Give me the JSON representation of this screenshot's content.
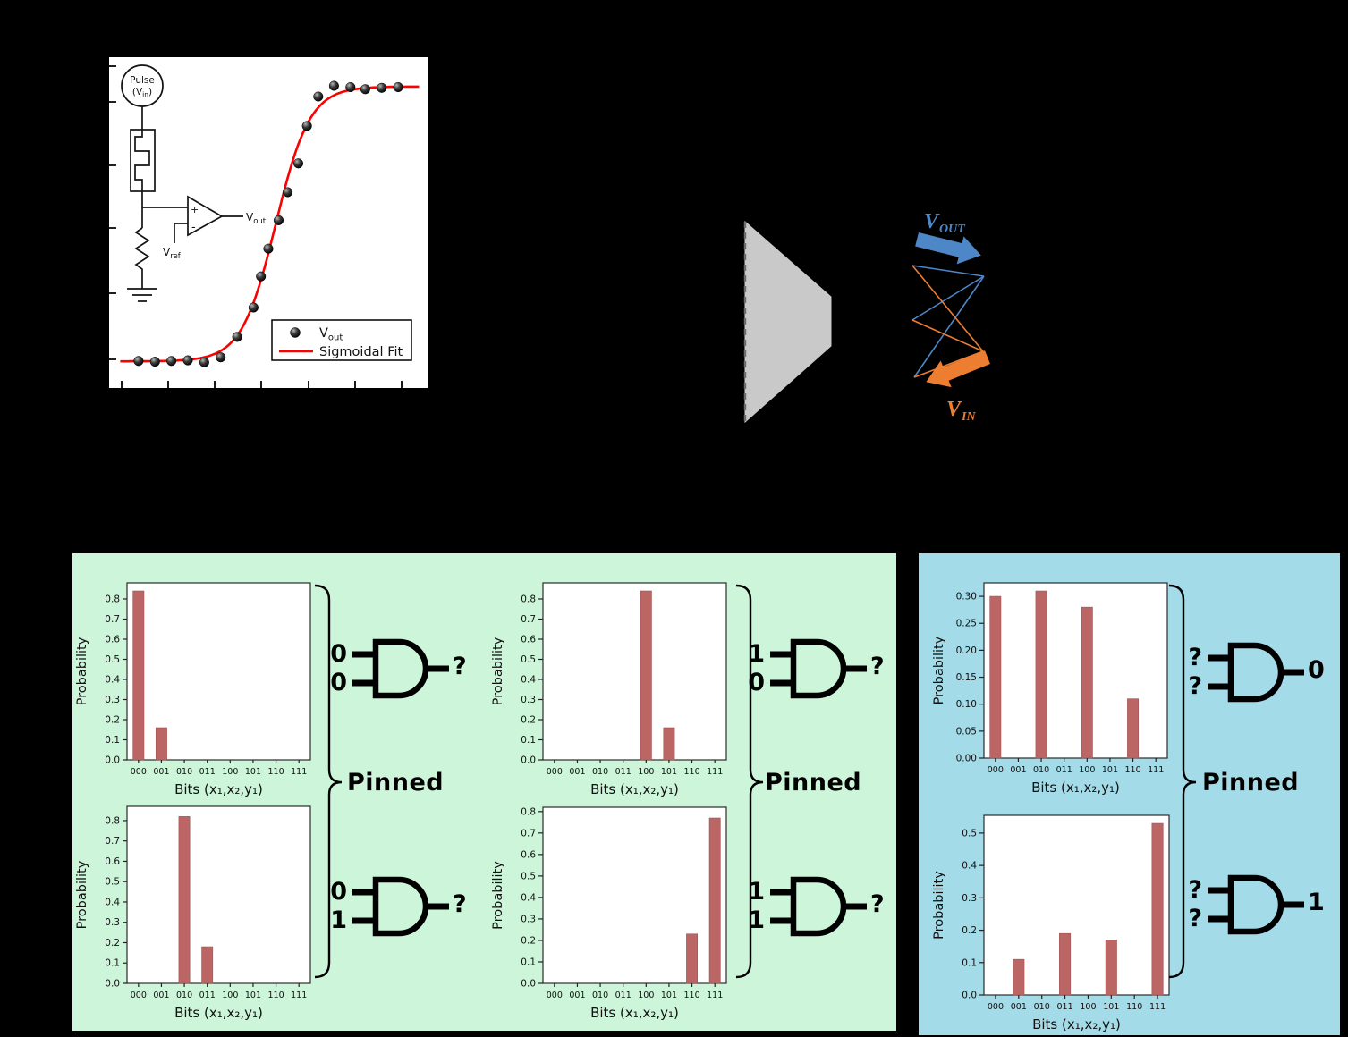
{
  "ui": {
    "colors": {
      "background": "#000000",
      "blue": "#4d87c8",
      "orange": "#ed7d31",
      "bar": "#bc6565",
      "bar_edge": "#a05454",
      "green_bg": "#cdf5da",
      "blue_bg": "#a3dbe8",
      "gray": "#c9c9c9",
      "red": "#ff0000"
    },
    "circuit": {
      "pulse_line1": "Pulse",
      "pulse_line2_open": "(V",
      "pulse_line2_sub": "in",
      "pulse_line2_close": ")",
      "opamp_plus": "+",
      "opamp_minus": "-",
      "vout_main": "V",
      "vout_sub": "out",
      "vref_main": "V",
      "vref_sub": "ref"
    },
    "legend": {
      "vout_main": "V",
      "vout_sub": "out",
      "fit_label": "Sigmoidal Fit"
    },
    "network": {
      "vout_main": "V",
      "vout_sub": "OUT",
      "vin_main": "V",
      "vin_sub": "IN"
    },
    "pinned": [
      "Pinned",
      "Pinned",
      "Pinned"
    ]
  },
  "groups": [
    {
      "inputs": [
        "0",
        "0"
      ],
      "output": "?"
    },
    {
      "inputs": [
        "0",
        "1"
      ],
      "output": "?"
    },
    {
      "inputs": [
        "1",
        "0"
      ],
      "output": "?"
    },
    {
      "inputs": [
        "1",
        "1"
      ],
      "output": "?"
    },
    {
      "inputs": [
        "?",
        "?"
      ],
      "output": "0"
    },
    {
      "inputs": [
        "?",
        "?"
      ],
      "output": "1"
    }
  ],
  "chart_data": [
    {
      "type": "scatter",
      "title": "",
      "legend": [
        "Vout",
        "Sigmoidal Fit"
      ],
      "legend_position": "lower right",
      "xlim": [
        0,
        1
      ],
      "ylim": [
        0,
        1
      ],
      "series": [
        {
          "name": "Vout",
          "marker": "sphere",
          "points_frac": [
            [
              0.097,
              0.086
            ],
            [
              0.148,
              0.084
            ],
            [
              0.199,
              0.086
            ],
            [
              0.25,
              0.088
            ],
            [
              0.301,
              0.082
            ],
            [
              0.352,
              0.097
            ],
            [
              0.403,
              0.158
            ],
            [
              0.454,
              0.246
            ],
            [
              0.477,
              0.339
            ],
            [
              0.5,
              0.422
            ],
            [
              0.532,
              0.507
            ],
            [
              0.56,
              0.591
            ],
            [
              0.593,
              0.677
            ],
            [
              0.62,
              0.789
            ],
            [
              0.655,
              0.877
            ],
            [
              0.704,
              0.909
            ],
            [
              0.755,
              0.905
            ],
            [
              0.801,
              0.899
            ],
            [
              0.852,
              0.903
            ],
            [
              0.903,
              0.905
            ]
          ]
        },
        {
          "name": "Sigmoidal Fit",
          "fit": {
            "y0": 0.085,
            "amp": 0.822,
            "x0": 0.523,
            "k": 0.053
          }
        }
      ]
    },
    {
      "type": "bar",
      "categories": [
        "000",
        "001",
        "010",
        "011",
        "100",
        "101",
        "110",
        "111"
      ],
      "values": [
        0.84,
        0.16,
        0,
        0,
        0,
        0,
        0,
        0
      ],
      "ylabel": "Probability",
      "xlabel": "Bits (x₁,x₂,y₁)",
      "ylim": [
        0,
        0.88
      ],
      "ytick_step": 0.1,
      "ytick_decimals": 1
    },
    {
      "type": "bar",
      "categories": [
        "000",
        "001",
        "010",
        "011",
        "100",
        "101",
        "110",
        "111"
      ],
      "values": [
        0,
        0,
        0.82,
        0.18,
        0,
        0,
        0,
        0
      ],
      "ylabel": "Probability",
      "xlabel": "Bits (x₁,x₂,y₁)",
      "ylim": [
        0,
        0.87
      ],
      "ytick_step": 0.1,
      "ytick_decimals": 1
    },
    {
      "type": "bar",
      "categories": [
        "000",
        "001",
        "010",
        "011",
        "100",
        "101",
        "110",
        "111"
      ],
      "values": [
        0,
        0,
        0,
        0,
        0.84,
        0.16,
        0,
        0
      ],
      "ylabel": "Probability",
      "xlabel": "Bits (x₁,x₂,y₁)",
      "ylim": [
        0,
        0.88
      ],
      "ytick_step": 0.1,
      "ytick_decimals": 1
    },
    {
      "type": "bar",
      "categories": [
        "000",
        "001",
        "010",
        "011",
        "100",
        "101",
        "110",
        "111"
      ],
      "values": [
        0,
        0,
        0,
        0,
        0,
        0,
        0.23,
        0.77
      ],
      "ylabel": "Probability",
      "xlabel": "Bits (x₁,x₂,y₁)",
      "ylim": [
        0,
        0.82
      ],
      "ytick_step": 0.1,
      "ytick_decimals": 1
    },
    {
      "type": "bar",
      "categories": [
        "000",
        "001",
        "010",
        "011",
        "100",
        "101",
        "110",
        "111"
      ],
      "values": [
        0.3,
        0,
        0.31,
        0,
        0.28,
        0,
        0.11,
        0
      ],
      "ylabel": "Probability",
      "xlabel": "Bits (x₁,x₂,y₁)",
      "ylim": [
        0,
        0.325
      ],
      "ytick_step": 0.05,
      "ytick_decimals": 2
    },
    {
      "type": "bar",
      "categories": [
        "000",
        "001",
        "010",
        "011",
        "100",
        "101",
        "110",
        "111"
      ],
      "values": [
        0,
        0.11,
        0,
        0.19,
        0,
        0.17,
        0,
        0.53
      ],
      "ylabel": "Probability",
      "xlabel": "Bits (x₁,x₂,y₁)",
      "ylim": [
        0,
        0.555
      ],
      "ytick_step": 0.1,
      "ytick_decimals": 1
    }
  ]
}
